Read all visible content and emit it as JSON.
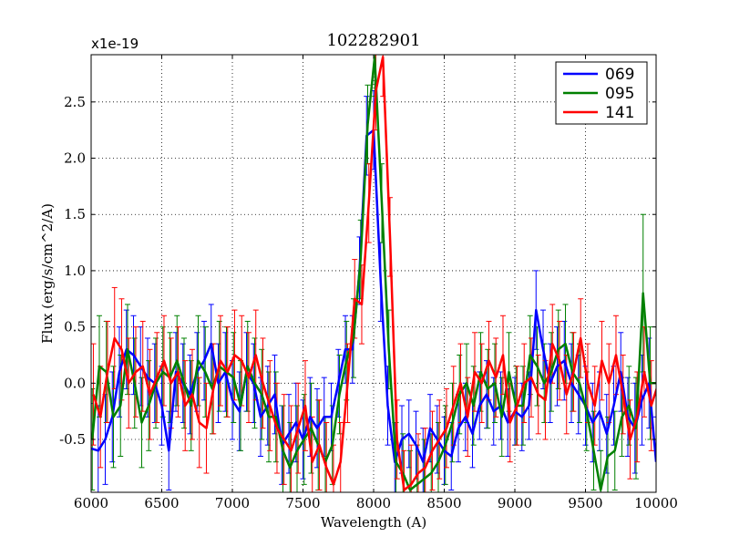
{
  "chart_data": {
    "type": "line",
    "title": "102282901",
    "xlabel": "Wavelength (A)",
    "ylabel": "Flux (erg/s/cm^2/A)",
    "y_offset_label": "x1e-19",
    "xlim": [
      6000,
      10000
    ],
    "ylim": [
      -0.97,
      2.92
    ],
    "x_ticks": [
      6000,
      6500,
      7000,
      7500,
      8000,
      8500,
      9000,
      9500,
      10000
    ],
    "x_tick_labels": [
      "6000",
      "6500",
      "7000",
      "7500",
      "8000",
      "8500",
      "9000",
      "9500",
      "10000"
    ],
    "y_ticks": [
      -0.5,
      0.0,
      0.5,
      1.0,
      1.5,
      2.0,
      2.5
    ],
    "y_tick_labels": [
      "-0.5",
      "0.0",
      "0.5",
      "1.0",
      "1.5",
      "2.0",
      "2.5"
    ],
    "grid": true,
    "legend_position": "top-right",
    "x_start": 6000,
    "x_step": 50,
    "series": [
      {
        "name": "069",
        "color": "#0000ff",
        "values": [
          -0.58,
          -0.6,
          -0.5,
          -0.3,
          0.1,
          0.3,
          0.25,
          0.15,
          0.05,
          0.0,
          -0.2,
          -0.6,
          0.1,
          0.0,
          -0.1,
          0.1,
          0.2,
          0.35,
          0.0,
          0.1,
          -0.15,
          -0.25,
          0.1,
          0.0,
          -0.3,
          -0.2,
          -0.1,
          -0.55,
          -0.45,
          -0.35,
          -0.5,
          -0.3,
          -0.4,
          -0.3,
          -0.3,
          0.0,
          0.3,
          0.3,
          1.0,
          2.2,
          2.25,
          0.9,
          -0.2,
          -0.7,
          -0.5,
          -0.45,
          -0.55,
          -0.7,
          -0.4,
          -0.5,
          -0.6,
          -0.65,
          -0.4,
          -0.3,
          -0.45,
          -0.2,
          -0.1,
          -0.25,
          -0.2,
          -0.35,
          -0.25,
          -0.3,
          -0.2,
          0.65,
          0.3,
          0.0,
          0.15,
          0.2,
          0.0,
          -0.1,
          -0.2,
          -0.35,
          -0.25,
          -0.45,
          -0.2,
          0.1,
          -0.3,
          -0.4,
          -0.15,
          0.0,
          -0.7
        ],
        "errors": [
          0.4,
          0.4,
          0.4,
          0.4,
          0.4,
          0.35,
          0.35,
          0.35,
          0.35,
          0.35,
          0.35,
          0.35,
          0.35,
          0.35,
          0.35,
          0.35,
          0.35,
          0.35,
          0.35,
          0.35,
          0.35,
          0.35,
          0.35,
          0.35,
          0.35,
          0.35,
          0.35,
          0.35,
          0.35,
          0.35,
          0.35,
          0.35,
          0.35,
          0.35,
          0.3,
          0.3,
          0.3,
          0.3,
          0.3,
          0.35,
          0.35,
          0.35,
          0.35,
          0.35,
          0.3,
          0.3,
          0.3,
          0.3,
          0.3,
          0.3,
          0.3,
          0.3,
          0.3,
          0.3,
          0.3,
          0.3,
          0.3,
          0.3,
          0.3,
          0.3,
          0.3,
          0.3,
          0.3,
          0.35,
          0.35,
          0.35,
          0.35,
          0.35,
          0.35,
          0.35,
          0.35,
          0.35,
          0.35,
          0.35,
          0.35,
          0.35,
          0.35,
          0.4,
          0.4,
          0.4,
          0.4
        ]
      },
      {
        "name": "095",
        "color": "#008000",
        "values": [
          -0.5,
          0.15,
          0.1,
          -0.3,
          -0.2,
          0.3,
          0.0,
          -0.35,
          -0.2,
          0.0,
          0.1,
          0.05,
          0.2,
          0.0,
          -0.2,
          0.2,
          0.1,
          -0.05,
          0.15,
          0.1,
          0.05,
          -0.2,
          0.15,
          0.0,
          -0.1,
          -0.3,
          -0.3,
          -0.6,
          -0.75,
          -0.6,
          -0.5,
          -0.4,
          -0.55,
          -0.7,
          -0.55,
          -0.1,
          0.2,
          0.4,
          1.1,
          2.3,
          2.9,
          1.6,
          0.3,
          -0.7,
          -0.8,
          -0.95,
          -0.9,
          -0.85,
          -0.8,
          -0.7,
          -0.55,
          -0.35,
          -0.1,
          0.0,
          -0.2,
          0.1,
          -0.05,
          0.0,
          -0.3,
          0.1,
          -0.2,
          -0.2,
          0.25,
          0.15,
          0.0,
          0.1,
          0.3,
          0.35,
          0.1,
          0.0,
          -0.25,
          -0.6,
          -0.95,
          -0.65,
          -0.6,
          -0.3,
          -0.2,
          -0.4,
          0.8,
          0.0,
          0.0
        ],
        "errors": [
          0.45,
          0.45,
          0.45,
          0.45,
          0.45,
          0.4,
          0.4,
          0.4,
          0.4,
          0.4,
          0.4,
          0.4,
          0.4,
          0.4,
          0.4,
          0.4,
          0.4,
          0.4,
          0.4,
          0.4,
          0.4,
          0.4,
          0.4,
          0.4,
          0.4,
          0.4,
          0.4,
          0.4,
          0.4,
          0.4,
          0.4,
          0.4,
          0.4,
          0.4,
          0.35,
          0.35,
          0.35,
          0.35,
          0.35,
          0.35,
          0.35,
          0.35,
          0.35,
          0.35,
          0.35,
          0.35,
          0.35,
          0.35,
          0.35,
          0.35,
          0.35,
          0.35,
          0.35,
          0.35,
          0.35,
          0.35,
          0.35,
          0.35,
          0.35,
          0.35,
          0.35,
          0.35,
          0.35,
          0.35,
          0.35,
          0.35,
          0.35,
          0.35,
          0.35,
          0.35,
          0.35,
          0.35,
          0.35,
          0.35,
          0.35,
          0.35,
          0.35,
          0.45,
          0.7,
          0.5,
          0.5
        ]
      },
      {
        "name": "141",
        "color": "#ff0000",
        "values": [
          -0.1,
          -0.3,
          0.1,
          0.4,
          0.3,
          0.0,
          0.1,
          0.15,
          -0.1,
          0.05,
          0.2,
          0.0,
          0.1,
          -0.2,
          -0.1,
          -0.35,
          -0.4,
          -0.05,
          0.2,
          0.1,
          0.25,
          0.2,
          0.05,
          0.25,
          0.0,
          -0.2,
          -0.4,
          -0.5,
          -0.6,
          -0.4,
          -0.2,
          -0.7,
          -0.55,
          -0.75,
          -0.9,
          -0.7,
          0.0,
          0.75,
          0.7,
          1.6,
          2.6,
          2.9,
          1.3,
          -0.5,
          -0.95,
          -0.9,
          -0.8,
          -0.75,
          -0.6,
          -0.5,
          -0.4,
          -0.2,
          0.0,
          -0.3,
          0.1,
          0.0,
          0.2,
          0.05,
          0.25,
          -0.35,
          -0.2,
          0.0,
          0.05,
          -0.1,
          -0.15,
          0.35,
          0.2,
          -0.1,
          0.1,
          0.4,
          0.0,
          -0.2,
          0.2,
          0.0,
          0.25,
          -0.1,
          -0.5,
          -0.3,
          0.1,
          -0.2,
          0.0
        ],
        "errors": [
          0.45,
          0.45,
          0.45,
          0.45,
          0.45,
          0.4,
          0.4,
          0.4,
          0.4,
          0.4,
          0.4,
          0.4,
          0.4,
          0.4,
          0.4,
          0.4,
          0.4,
          0.4,
          0.4,
          0.4,
          0.4,
          0.4,
          0.4,
          0.4,
          0.4,
          0.4,
          0.4,
          0.4,
          0.4,
          0.4,
          0.4,
          0.4,
          0.4,
          0.4,
          0.35,
          0.35,
          0.35,
          0.35,
          0.35,
          0.35,
          0.35,
          0.35,
          0.35,
          0.35,
          0.35,
          0.35,
          0.35,
          0.35,
          0.35,
          0.35,
          0.35,
          0.35,
          0.35,
          0.35,
          0.35,
          0.35,
          0.35,
          0.35,
          0.35,
          0.35,
          0.35,
          0.35,
          0.35,
          0.35,
          0.35,
          0.35,
          0.35,
          0.35,
          0.35,
          0.35,
          0.35,
          0.35,
          0.35,
          0.35,
          0.35,
          0.35,
          0.35,
          0.4,
          0.4,
          0.4,
          0.4
        ]
      }
    ]
  }
}
